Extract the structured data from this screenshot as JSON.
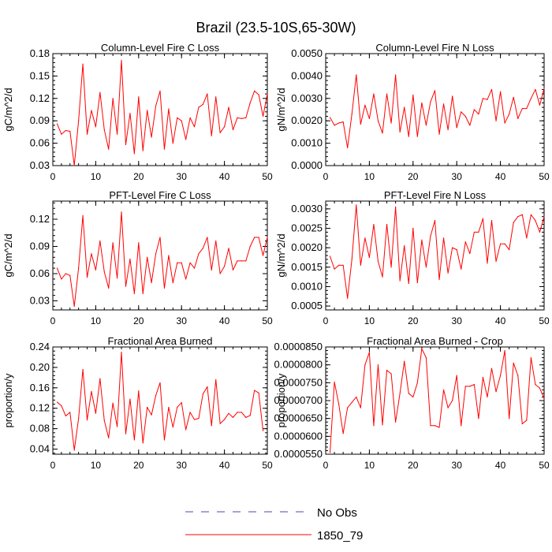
{
  "figure": {
    "title": "Brazil (23.5-10S,65-30W)",
    "legend": [
      {
        "label": "No Obs",
        "style": "dashed",
        "color": "#4a4ab0"
      },
      {
        "label": "1850_79",
        "style": "solid",
        "color": "#ff0000"
      }
    ]
  },
  "colors": {
    "series": "#ff0000",
    "axis": "#000000"
  },
  "chart_data": [
    {
      "type": "line",
      "title": "Column-Level Fire C Loss",
      "ylabel": "gC/m^2/d",
      "xlim": [
        0,
        50
      ],
      "ylim": [
        0.03,
        0.18
      ],
      "xticks": [
        0,
        10,
        20,
        30,
        40,
        50
      ],
      "xtick_labels": [
        "0",
        "10",
        "20",
        "30",
        "40",
        "50"
      ],
      "yticks": [
        0.03,
        0.06,
        0.09,
        0.12,
        0.15,
        0.18
      ],
      "ytick_labels": [
        "0.03",
        "0.06",
        "0.09",
        "0.12",
        "0.15",
        "0.18"
      ],
      "series": [
        {
          "name": "1850_79",
          "x": [
            1,
            2,
            3,
            4,
            5,
            6,
            7,
            8,
            9,
            10,
            11,
            12,
            13,
            14,
            15,
            16,
            17,
            18,
            19,
            20,
            21,
            22,
            23,
            24,
            25,
            26,
            27,
            28,
            29,
            30,
            31,
            32,
            33,
            34,
            35,
            36,
            37,
            38,
            39,
            40,
            41,
            42,
            43,
            44,
            45,
            46,
            47,
            48,
            49,
            50
          ],
          "values": [
            0.086,
            0.072,
            0.077,
            0.076,
            0.03,
            0.09,
            0.166,
            0.072,
            0.104,
            0.082,
            0.128,
            0.078,
            0.052,
            0.12,
            0.072,
            0.171,
            0.058,
            0.1,
            0.046,
            0.122,
            0.05,
            0.104,
            0.068,
            0.11,
            0.13,
            0.052,
            0.106,
            0.06,
            0.094,
            0.09,
            0.065,
            0.094,
            0.082,
            0.108,
            0.112,
            0.126,
            0.07,
            0.122,
            0.074,
            0.082,
            0.108,
            0.078,
            0.094,
            0.093,
            0.094,
            0.114,
            0.13,
            0.125,
            0.096,
            0.126
          ]
        }
      ]
    },
    {
      "type": "line",
      "title": "Column-Level Fire N Loss",
      "ylabel": "gN/m^2/d",
      "xlim": [
        0,
        50
      ],
      "ylim": [
        0.0,
        0.005
      ],
      "xticks": [
        0,
        10,
        20,
        30,
        40,
        50
      ],
      "xtick_labels": [
        "0",
        "10",
        "20",
        "30",
        "40",
        "50"
      ],
      "yticks": [
        0.0,
        0.001,
        0.002,
        0.003,
        0.004,
        0.005
      ],
      "ytick_labels": [
        "0.0000",
        "0.0010",
        "0.0020",
        "0.0030",
        "0.0040",
        "0.0050"
      ],
      "series": [
        {
          "name": "1850_79",
          "x": [
            1,
            2,
            3,
            4,
            5,
            6,
            7,
            8,
            9,
            10,
            11,
            12,
            13,
            14,
            15,
            16,
            17,
            18,
            19,
            20,
            21,
            22,
            23,
            24,
            25,
            26,
            27,
            28,
            29,
            30,
            31,
            32,
            33,
            34,
            35,
            36,
            37,
            38,
            39,
            40,
            41,
            42,
            43,
            44,
            45,
            46,
            47,
            48,
            49,
            50
          ],
          "values": [
            0.00215,
            0.0018,
            0.0019,
            0.00195,
            0.0008,
            0.0023,
            0.00405,
            0.00185,
            0.0027,
            0.0021,
            0.0032,
            0.002,
            0.00145,
            0.0032,
            0.0019,
            0.00405,
            0.0015,
            0.0026,
            0.0013,
            0.00315,
            0.0013,
            0.0028,
            0.0018,
            0.00285,
            0.00335,
            0.0014,
            0.00275,
            0.0016,
            0.0031,
            0.0017,
            0.0024,
            0.0022,
            0.0018,
            0.0025,
            0.0023,
            0.003,
            0.00295,
            0.0034,
            0.002,
            0.0033,
            0.0019,
            0.0023,
            0.00305,
            0.0021,
            0.00255,
            0.00255,
            0.003,
            0.0034,
            0.0027,
            0.00345
          ]
        }
      ]
    },
    {
      "type": "line",
      "title": "PFT-Level Fire C Loss",
      "ylabel": "gC/m^2/d",
      "xlim": [
        0,
        50
      ],
      "ylim": [
        0.02,
        0.14
      ],
      "xticks": [
        0,
        10,
        20,
        30,
        40,
        50
      ],
      "xtick_labels": [
        "0",
        "10",
        "20",
        "30",
        "40",
        "50"
      ],
      "yticks": [
        0.03,
        0.06,
        0.09,
        0.12
      ],
      "ytick_labels": [
        "0.03",
        "0.06",
        "0.09",
        "0.12"
      ],
      "series": [
        {
          "name": "1850_79",
          "x": [
            1,
            2,
            3,
            4,
            5,
            6,
            7,
            8,
            9,
            10,
            11,
            12,
            13,
            14,
            15,
            16,
            17,
            18,
            19,
            20,
            21,
            22,
            23,
            24,
            25,
            26,
            27,
            28,
            29,
            30,
            31,
            32,
            33,
            34,
            35,
            36,
            37,
            38,
            39,
            40,
            41,
            42,
            43,
            44,
            45,
            46,
            47,
            48,
            49,
            50
          ],
          "values": [
            0.066,
            0.054,
            0.06,
            0.058,
            0.024,
            0.066,
            0.124,
            0.056,
            0.082,
            0.064,
            0.096,
            0.062,
            0.044,
            0.094,
            0.055,
            0.128,
            0.046,
            0.076,
            0.038,
            0.094,
            0.038,
            0.078,
            0.05,
            0.082,
            0.1,
            0.044,
            0.08,
            0.05,
            0.072,
            0.072,
            0.054,
            0.072,
            0.066,
            0.082,
            0.088,
            0.1,
            0.064,
            0.096,
            0.06,
            0.068,
            0.088,
            0.064,
            0.074,
            0.074,
            0.074,
            0.09,
            0.1,
            0.1,
            0.08,
            0.1
          ]
        }
      ]
    },
    {
      "type": "line",
      "title": "PFT-Level Fire N Loss",
      "ylabel": "gN/m^2/d",
      "xlim": [
        0,
        50
      ],
      "ylim": [
        0.0004,
        0.0032
      ],
      "xticks": [
        0,
        10,
        20,
        30,
        40,
        50
      ],
      "xtick_labels": [
        "0",
        "10",
        "20",
        "30",
        "40",
        "50"
      ],
      "yticks": [
        0.0005,
        0.001,
        0.0015,
        0.002,
        0.0025,
        0.003
      ],
      "ytick_labels": [
        "0.0005",
        "0.0010",
        "0.0015",
        "0.0020",
        "0.0025",
        "0.0030"
      ],
      "series": [
        {
          "name": "1850_79",
          "x": [
            1,
            2,
            3,
            4,
            5,
            6,
            7,
            8,
            9,
            10,
            11,
            12,
            13,
            14,
            15,
            16,
            17,
            18,
            19,
            20,
            21,
            22,
            23,
            24,
            25,
            26,
            27,
            28,
            29,
            30,
            31,
            32,
            33,
            34,
            35,
            36,
            37,
            38,
            39,
            40,
            41,
            42,
            43,
            44,
            45,
            46,
            47,
            48,
            49,
            50
          ],
          "values": [
            0.00178,
            0.00145,
            0.00155,
            0.00155,
            0.0007,
            0.0017,
            0.0031,
            0.00155,
            0.00225,
            0.00175,
            0.0026,
            0.00165,
            0.00125,
            0.0026,
            0.0015,
            0.00305,
            0.00115,
            0.00205,
            0.00108,
            0.0025,
            0.0011,
            0.0022,
            0.0015,
            0.0023,
            0.0027,
            0.00118,
            0.00225,
            0.00135,
            0.002,
            0.00195,
            0.00145,
            0.00215,
            0.00185,
            0.0024,
            0.0024,
            0.00275,
            0.0016,
            0.0027,
            0.00165,
            0.0021,
            0.0021,
            0.00195,
            0.00265,
            0.0028,
            0.00285,
            0.00225,
            0.00285,
            0.0027,
            0.0024,
            0.0028
          ]
        }
      ]
    },
    {
      "type": "line",
      "title": "Fractional Area Burned",
      "ylabel": "proportion/y",
      "xlim": [
        0,
        50
      ],
      "ylim": [
        0.03,
        0.24
      ],
      "xticks": [
        0,
        10,
        20,
        30,
        40,
        50
      ],
      "xtick_labels": [
        "0",
        "10",
        "20",
        "30",
        "40",
        "50"
      ],
      "yticks": [
        0.04,
        0.08,
        0.12,
        0.16,
        0.2,
        0.24
      ],
      "ytick_labels": [
        "0.04",
        "0.08",
        "0.12",
        "0.16",
        "0.20",
        "0.24"
      ],
      "series": [
        {
          "name": "1850_79",
          "x": [
            1,
            2,
            3,
            4,
            5,
            6,
            7,
            8,
            9,
            10,
            11,
            12,
            13,
            14,
            15,
            16,
            17,
            18,
            19,
            20,
            21,
            22,
            23,
            24,
            25,
            26,
            27,
            28,
            29,
            30,
            31,
            32,
            33,
            34,
            35,
            36,
            37,
            38,
            39,
            40,
            41,
            42,
            43,
            44,
            45,
            46,
            47,
            48,
            49
          ],
          "values": [
            0.132,
            0.125,
            0.105,
            0.112,
            0.038,
            0.1,
            0.196,
            0.097,
            0.153,
            0.11,
            0.178,
            0.096,
            0.062,
            0.13,
            0.084,
            0.23,
            0.07,
            0.138,
            0.058,
            0.154,
            0.052,
            0.122,
            0.107,
            0.145,
            0.17,
            0.058,
            0.122,
            0.083,
            0.122,
            0.131,
            0.078,
            0.112,
            0.098,
            0.1,
            0.148,
            0.162,
            0.086,
            0.176,
            0.09,
            0.098,
            0.11,
            0.102,
            0.112,
            0.112,
            0.102,
            0.106,
            0.155,
            0.15,
            0.076
          ]
        }
      ]
    },
    {
      "type": "line",
      "title": "Fractional Area Burned - Crop",
      "ylabel": "proportion/y",
      "xlim": [
        0,
        50
      ],
      "ylim": [
        5.5e-05,
        8.5e-05
      ],
      "xticks": [
        0,
        10,
        20,
        30,
        40,
        50
      ],
      "xtick_labels": [
        "0",
        "10",
        "20",
        "30",
        "40",
        "50"
      ],
      "yticks": [
        5.5e-05,
        6e-05,
        6.5e-05,
        7e-05,
        7.5e-05,
        8e-05,
        8.5e-05
      ],
      "ytick_labels": [
        "0.0000550",
        "0.0000600",
        "0.0000650",
        "0.0000700",
        "0.0000750",
        "0.0000800",
        "0.0000850"
      ],
      "series": [
        {
          "name": "1850_79",
          "x": [
            1,
            2,
            3,
            4,
            5,
            6,
            7,
            8,
            9,
            10,
            11,
            12,
            13,
            14,
            15,
            16,
            17,
            18,
            19,
            20,
            21,
            22,
            23,
            24,
            25,
            26,
            27,
            28,
            29,
            30,
            31,
            32,
            33,
            34,
            35,
            36,
            37,
            38,
            39,
            40,
            41,
            42,
            43,
            44,
            45,
            46,
            47,
            48,
            49,
            50
          ],
          "values": [
            5.55e-05,
            7.52e-05,
            6.9e-05,
            6.08e-05,
            6.8e-05,
            6.95e-05,
            7.1e-05,
            6.8e-05,
            8e-05,
            8.35e-05,
            6.3e-05,
            8e-05,
            6.32e-05,
            7.85e-05,
            7.75e-05,
            6.4e-05,
            7.2e-05,
            8.1e-05,
            7.2e-05,
            7.1e-05,
            7.5e-05,
            8.45e-05,
            8.2e-05,
            6.3e-05,
            6.3e-05,
            6.25e-05,
            7.3e-05,
            6.8e-05,
            7e-05,
            7.7e-05,
            6.3e-05,
            7.4e-05,
            7.4e-05,
            7.45e-05,
            6.5e-05,
            7.65e-05,
            7.1e-05,
            7.9e-05,
            7.25e-05,
            7.7e-05,
            8.4e-05,
            6.5e-05,
            8.05e-05,
            7.7e-05,
            6.35e-05,
            6.45e-05,
            8.2e-05,
            7.45e-05,
            7.35e-05,
            7.05e-05
          ]
        }
      ]
    }
  ]
}
